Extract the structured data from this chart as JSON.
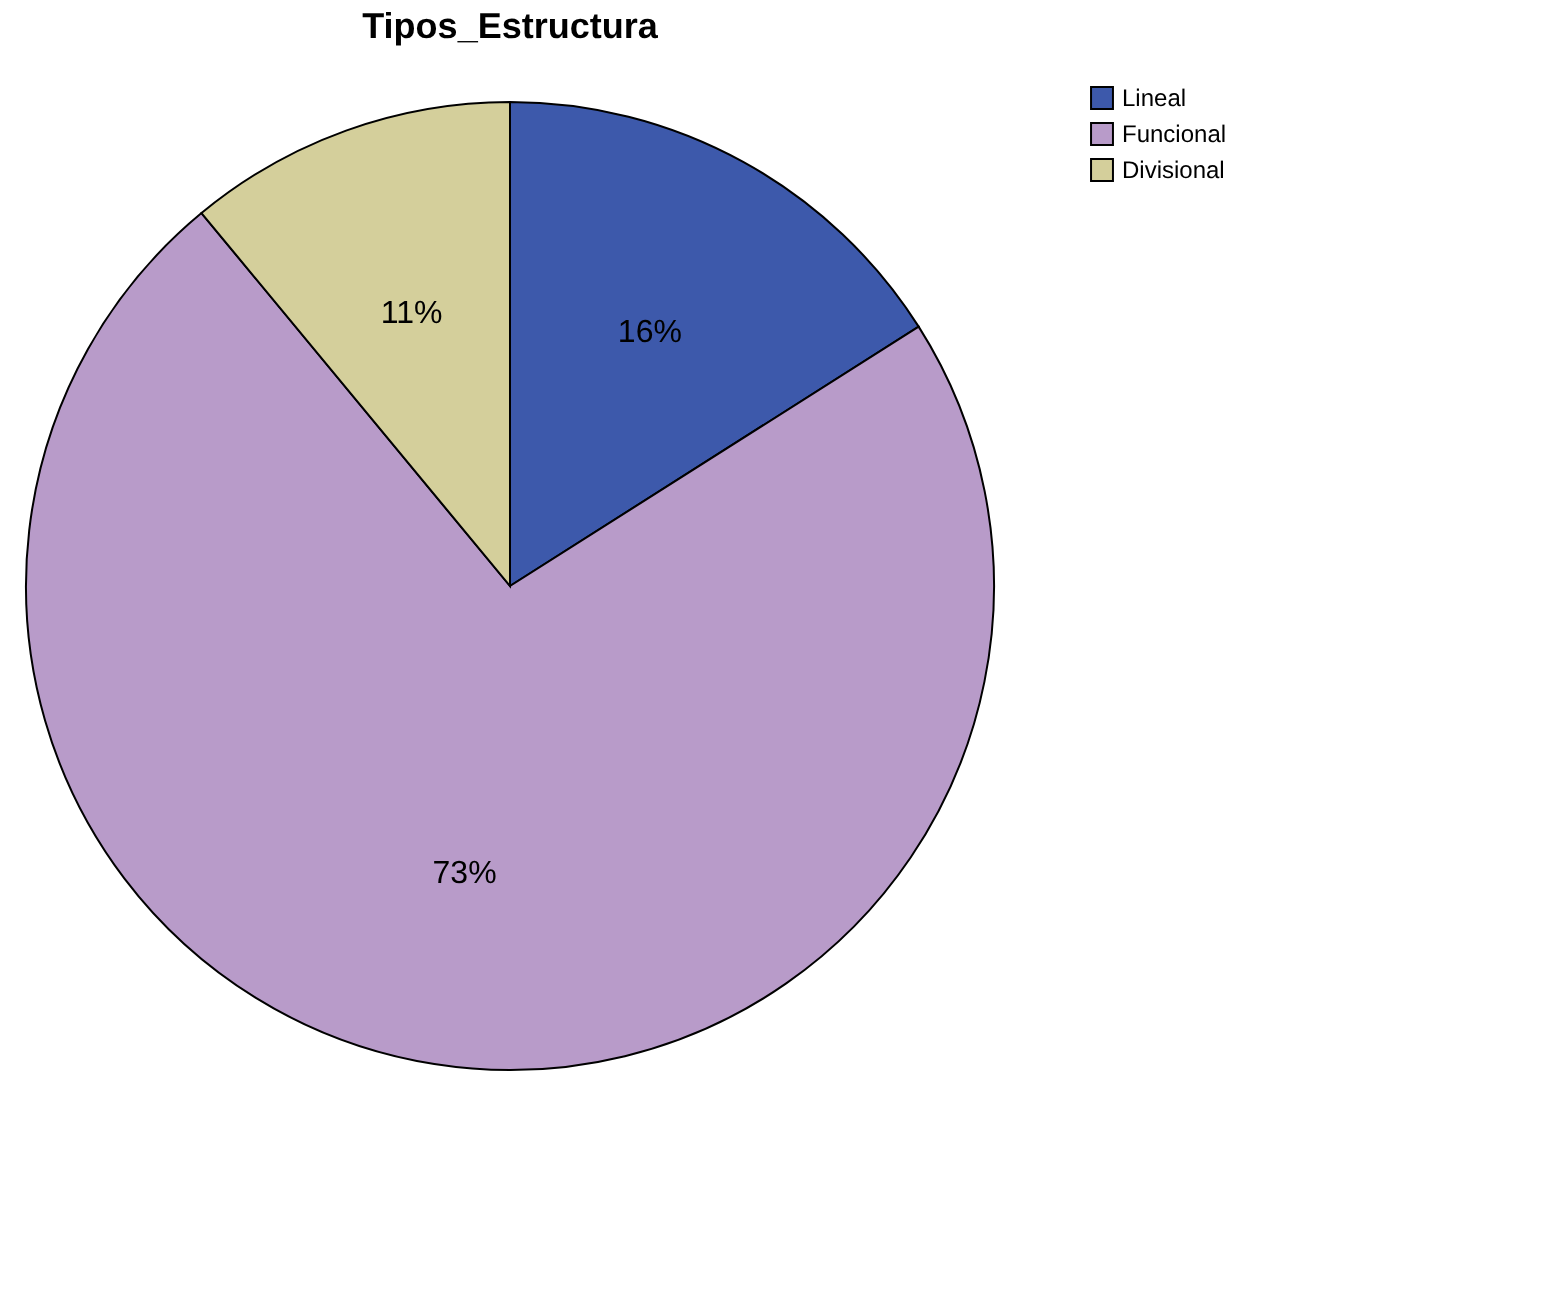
{
  "chart_data": {
    "type": "pie",
    "title": "Tipos_Estructura",
    "categories": [
      "Lineal",
      "Funcional",
      "Divisional"
    ],
    "values": [
      16,
      73,
      11
    ],
    "colors": [
      "#3d59ab",
      "#b89bc9",
      "#d4cf9b"
    ],
    "value_labels": [
      "16%",
      "73%",
      "11%"
    ],
    "legend": "top right"
  }
}
